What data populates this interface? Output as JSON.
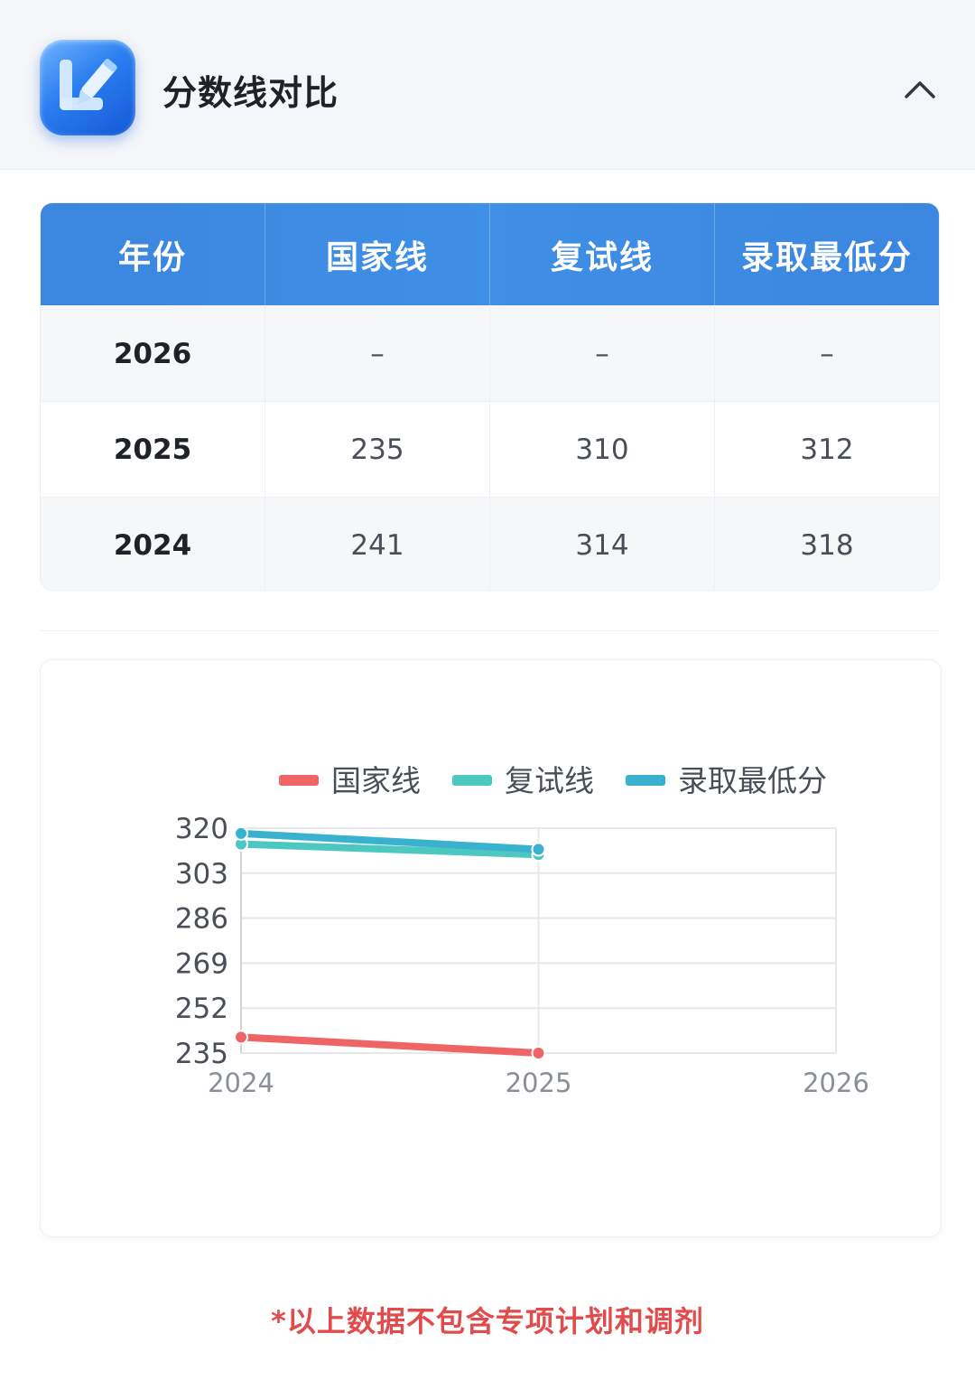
{
  "header": {
    "title": "分数线对比",
    "app_icon": "pencil-note-icon",
    "collapse_icon": "chevron-up-icon"
  },
  "table": {
    "columns": [
      "年份",
      "国家线",
      "复试线",
      "录取最低分"
    ],
    "rows": [
      {
        "year": "2026",
        "national": "–",
        "retest": "–",
        "min_admit": "–"
      },
      {
        "year": "2025",
        "national": "235",
        "retest": "310",
        "min_admit": "312"
      },
      {
        "year": "2024",
        "national": "241",
        "retest": "314",
        "min_admit": "318"
      }
    ],
    "header_color": "#3b86df"
  },
  "chart_data": {
    "type": "line",
    "categories": [
      "2024",
      "2025",
      "2026"
    ],
    "series": [
      {
        "name": "国家线",
        "values": [
          241,
          235,
          null
        ],
        "color": "#ef6565"
      },
      {
        "name": "复试线",
        "values": [
          314,
          310,
          null
        ],
        "color": "#4cc8c0"
      },
      {
        "name": "录取最低分",
        "values": [
          318,
          312,
          null
        ],
        "color": "#3ab2cf"
      }
    ],
    "y_ticks": [
      "320",
      "303",
      "286",
      "269",
      "252",
      "235"
    ],
    "ylim": [
      235,
      320
    ],
    "grid": true,
    "legend_position": "top"
  },
  "footnote": "*以上数据不包含专项计划和调剂"
}
